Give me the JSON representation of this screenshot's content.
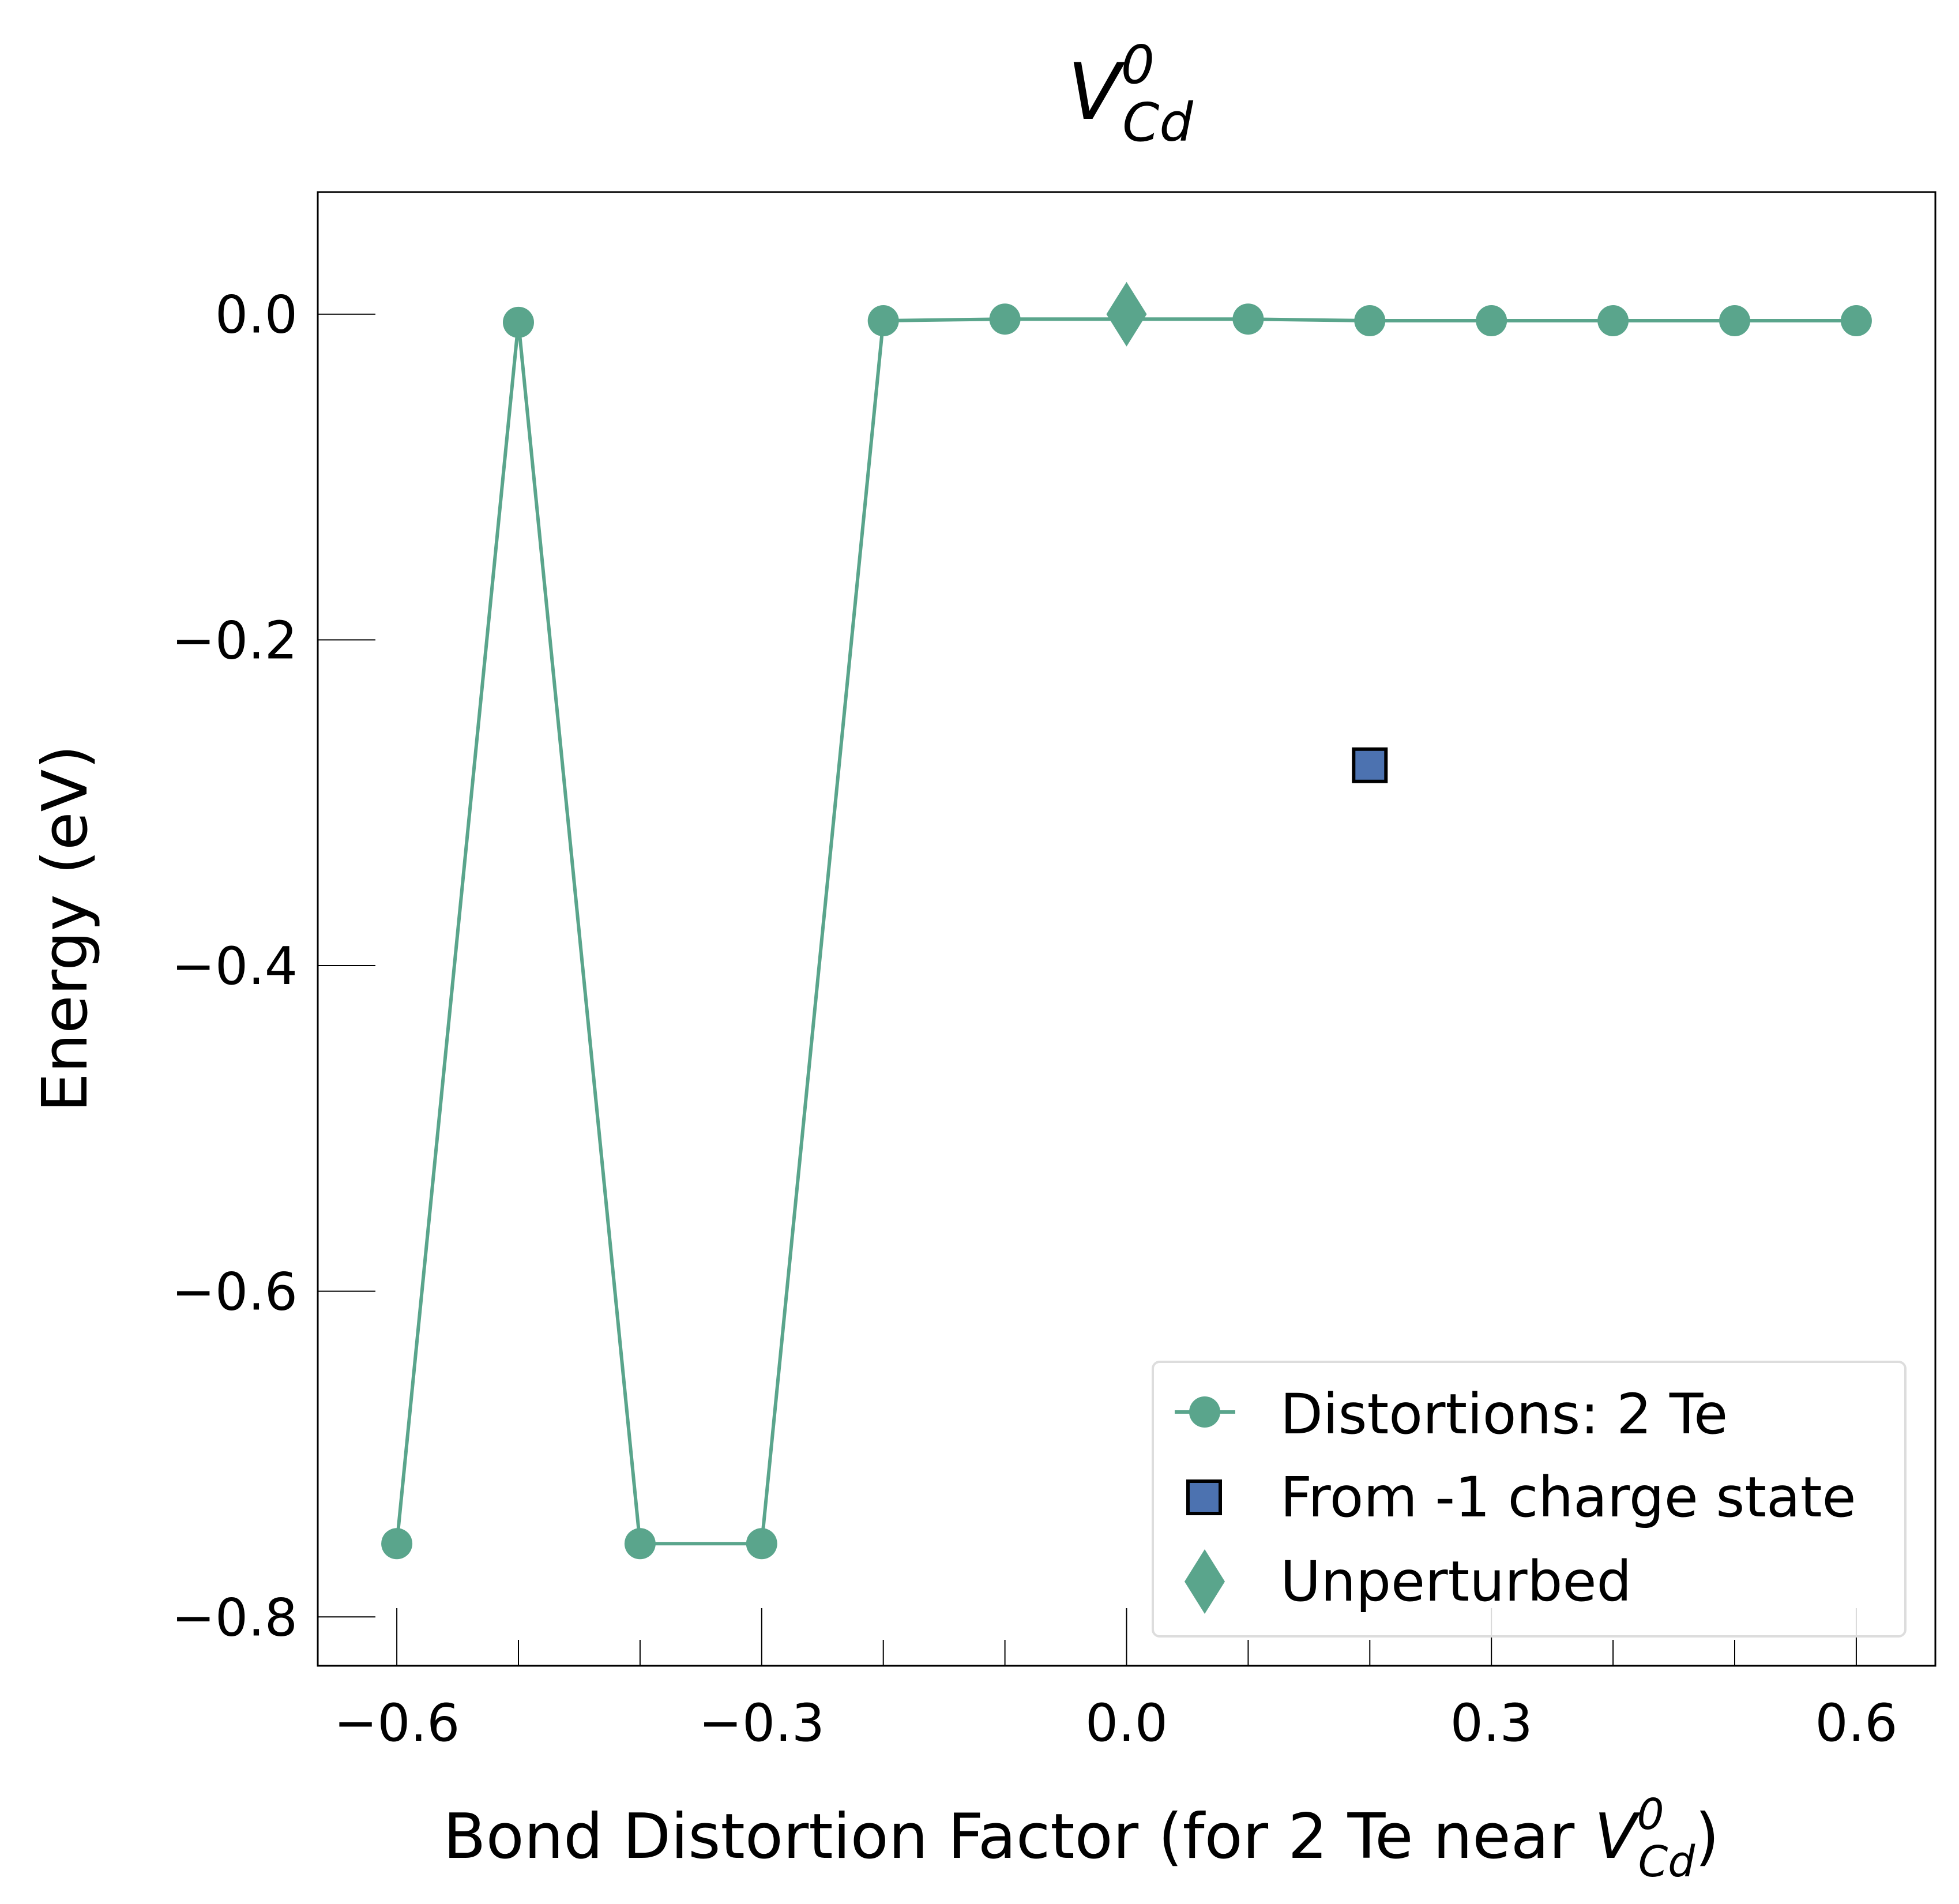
{
  "chart_data": {
    "type": "line",
    "title": {
      "base": "V",
      "sup": "0",
      "sub": "Cd"
    },
    "xlabel": {
      "text": "Bond Distortion Factor (for 2 Te near ",
      "math_base": "V",
      "math_sup": "0",
      "math_sub": "Cd",
      "suffix": ")"
    },
    "ylabel": "Energy (eV)",
    "xlim": [
      -0.665,
      0.665
    ],
    "ylim": [
      -0.83,
      0.075
    ],
    "xticks": [
      -0.6,
      -0.5,
      -0.4,
      -0.3,
      -0.2,
      -0.1,
      0.0,
      0.1,
      0.2,
      0.3,
      0.4,
      0.5,
      0.6
    ],
    "xtick_labels": [
      "−0.6",
      "",
      "",
      "−0.3",
      "",
      "",
      "0.0",
      "",
      "",
      "0.3",
      "",
      "",
      "0.6"
    ],
    "yticks": [
      0.0,
      -0.2,
      -0.4,
      -0.6,
      -0.8
    ],
    "ytick_labels": [
      "0.0",
      "−0.2",
      "−0.4",
      "−0.6",
      "−0.8"
    ],
    "grid": false,
    "legend_position": "bottom-right",
    "series": [
      {
        "name": "Distortions: 2 Te",
        "marker": "circle",
        "color": "#5aa58c",
        "x": [
          -0.6,
          -0.5,
          -0.4,
          -0.3,
          -0.2,
          -0.1,
          0.1,
          0.2,
          0.3,
          0.4,
          0.5,
          0.6
        ],
        "y": [
          -0.755,
          -0.005,
          -0.755,
          -0.755,
          -0.004,
          -0.003,
          -0.003,
          -0.004,
          -0.004,
          -0.004,
          -0.004,
          -0.004
        ]
      },
      {
        "name": "From -1 charge state",
        "marker": "square",
        "color": "#4c72b0",
        "x": [
          0.2
        ],
        "y": [
          -0.277
        ]
      },
      {
        "name": "Unperturbed",
        "marker": "diamond",
        "color": "#5aa58c",
        "x": [
          0.0
        ],
        "y": [
          0.0
        ]
      }
    ]
  }
}
